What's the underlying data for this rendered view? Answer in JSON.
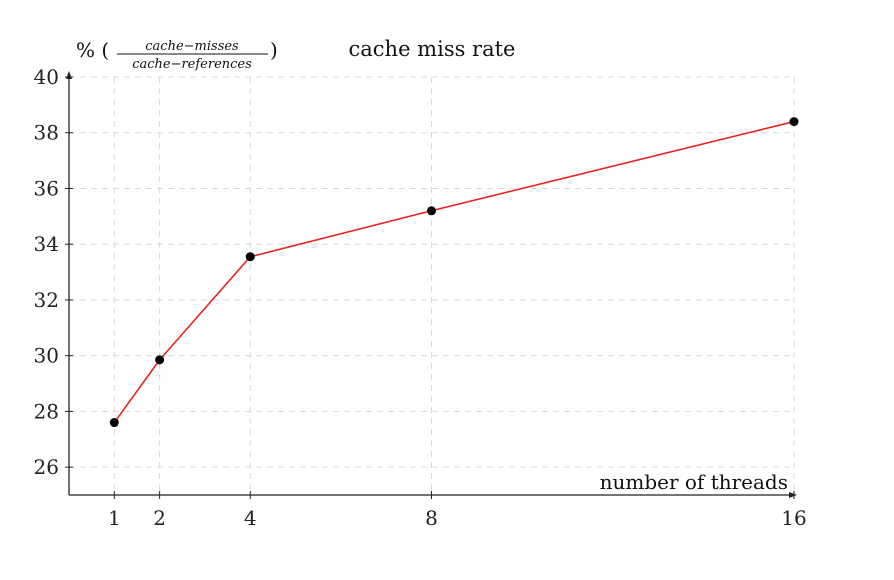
{
  "chart_data": {
    "type": "line",
    "title": "cache miss rate",
    "xlabel": "number of threads",
    "ylabel": {
      "prefix": "% (",
      "numerator": "cache−misses",
      "denominator": "cache−references",
      "suffix": ")"
    },
    "x": [
      1,
      2,
      4,
      8,
      16
    ],
    "xticks": [
      "1",
      "2",
      "4",
      "8",
      "16"
    ],
    "yticks": [
      "26",
      "28",
      "30",
      "32",
      "34",
      "36",
      "38",
      "40"
    ],
    "ylim": [
      25,
      40
    ],
    "xlim": [
      0,
      16
    ],
    "grid": true,
    "series": [
      {
        "values": [
          27.6,
          29.85,
          33.55,
          35.2,
          38.4
        ],
        "color": "#e8231f",
        "marker_color": "#000000"
      }
    ]
  }
}
